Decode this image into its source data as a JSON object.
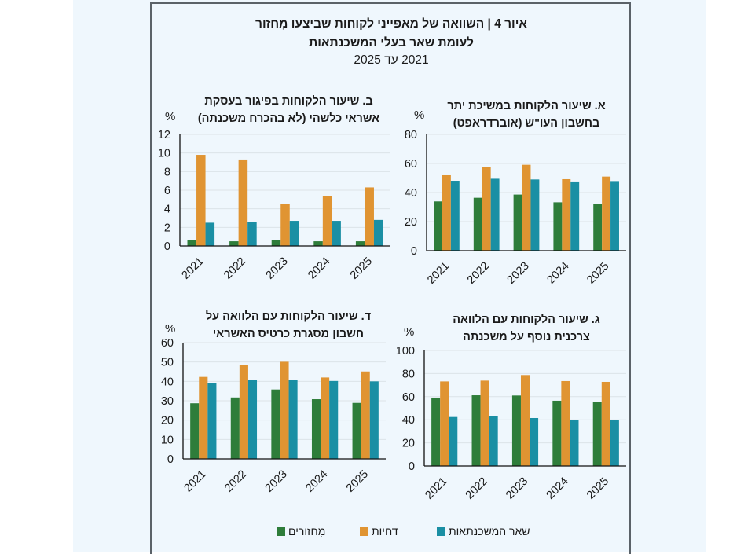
{
  "figure": {
    "title_line1": "איור 4 | השוואה של מאפייני לקוחות שביצעו מִחזור",
    "title_line2": "לעומת שאר בעלי המשכנתאות",
    "title_line3": "2021 עד 2025"
  },
  "colors": {
    "series": [
      "#2e7d3a",
      "#e09432",
      "#1a8fa4"
    ],
    "background": "#eff7fd",
    "frame": "#5b6268",
    "grid": "#dce3e8"
  },
  "legend": {
    "items": [
      {
        "label": "מִחזורים",
        "color": "#2e7d3a"
      },
      {
        "label": "דחיות",
        "color": "#e09432"
      },
      {
        "label": "שאר המשכנתאות",
        "color": "#1a8fa4"
      }
    ]
  },
  "chart_data": [
    {
      "id": "A",
      "type": "bar",
      "title_line1": "א. שיעור הלקוחות במשיכת יתר",
      "title_line2": "בחשבון העו\"ש (אוברדראפט)",
      "ylabel": "%",
      "ylim": [
        0,
        80
      ],
      "yticks": [
        0,
        20,
        40,
        60,
        80
      ],
      "grid": true,
      "legend": "bottom",
      "categories": [
        "2021",
        "2022",
        "2023",
        "2024",
        "2025"
      ],
      "series": [
        {
          "name": "מִחזורים",
          "values": [
            33.9,
            36.4,
            38.6,
            33.3,
            31.9
          ]
        },
        {
          "name": "דחיות",
          "values": [
            51.9,
            57.8,
            59.1,
            49.2,
            51.0
          ]
        },
        {
          "name": "שאר המשכנתאות",
          "values": [
            48.1,
            49.5,
            49.0,
            47.6,
            47.9
          ]
        }
      ]
    },
    {
      "id": "B",
      "type": "bar",
      "title_line1": "ב. שיעור הלקוחות בפיגור בעסקת",
      "title_line2": "אשראי כלשהי (לא בהכרח משכנתה)",
      "ylabel": "%",
      "ylim": [
        0,
        12
      ],
      "yticks": [
        0,
        2,
        4,
        6,
        8,
        10,
        12
      ],
      "grid": true,
      "legend": "bottom",
      "categories": [
        "2021",
        "2022",
        "2023",
        "2024",
        "2025"
      ],
      "series": [
        {
          "name": "מִחזורים",
          "values": [
            0.6,
            0.5,
            0.6,
            0.5,
            0.5
          ]
        },
        {
          "name": "דחיות",
          "values": [
            9.8,
            9.3,
            4.5,
            5.4,
            6.3
          ]
        },
        {
          "name": "שאר המשכנתאות",
          "values": [
            2.5,
            2.6,
            2.7,
            2.7,
            2.8
          ]
        }
      ]
    },
    {
      "id": "G",
      "type": "bar",
      "title_line1": "ג. שיעור הלקוחות עם הלוואה",
      "title_line2": "צרכנית נוסף על משכנתה",
      "ylabel": "%",
      "ylim": [
        0,
        100
      ],
      "yticks": [
        0,
        20,
        40,
        60,
        80,
        100
      ],
      "grid": true,
      "legend": "bottom",
      "categories": [
        "2021",
        "2022",
        "2023",
        "2024",
        "2025"
      ],
      "series": [
        {
          "name": "מִחזורים",
          "values": [
            59.2,
            61.2,
            61.0,
            56.5,
            55.3
          ]
        },
        {
          "name": "דחיות",
          "values": [
            73.2,
            73.9,
            78.7,
            73.5,
            72.8
          ]
        },
        {
          "name": "שאר המשכנתאות",
          "values": [
            42.4,
            42.9,
            41.5,
            39.9,
            39.9
          ]
        }
      ]
    },
    {
      "id": "D",
      "type": "bar",
      "title_line1": "ד. שיעור הלקוחות עם הלוואה על",
      "title_line2": "חשבון מסגרת כרטיס האשראי",
      "ylabel": "%",
      "ylim": [
        0,
        60
      ],
      "yticks": [
        0,
        10,
        20,
        30,
        40,
        50,
        60
      ],
      "grid": true,
      "legend": "bottom",
      "categories": [
        "2021",
        "2022",
        "2023",
        "2024",
        "2025"
      ],
      "series": [
        {
          "name": "מִחזורים",
          "values": [
            28.7,
            31.7,
            35.8,
            30.8,
            28.9
          ]
        },
        {
          "name": "דחיות",
          "values": [
            42.3,
            48.4,
            50.1,
            42.0,
            45.1
          ]
        },
        {
          "name": "שאר המשכנתאות",
          "values": [
            39.3,
            40.9,
            40.9,
            40.2,
            40.0
          ]
        }
      ]
    }
  ]
}
